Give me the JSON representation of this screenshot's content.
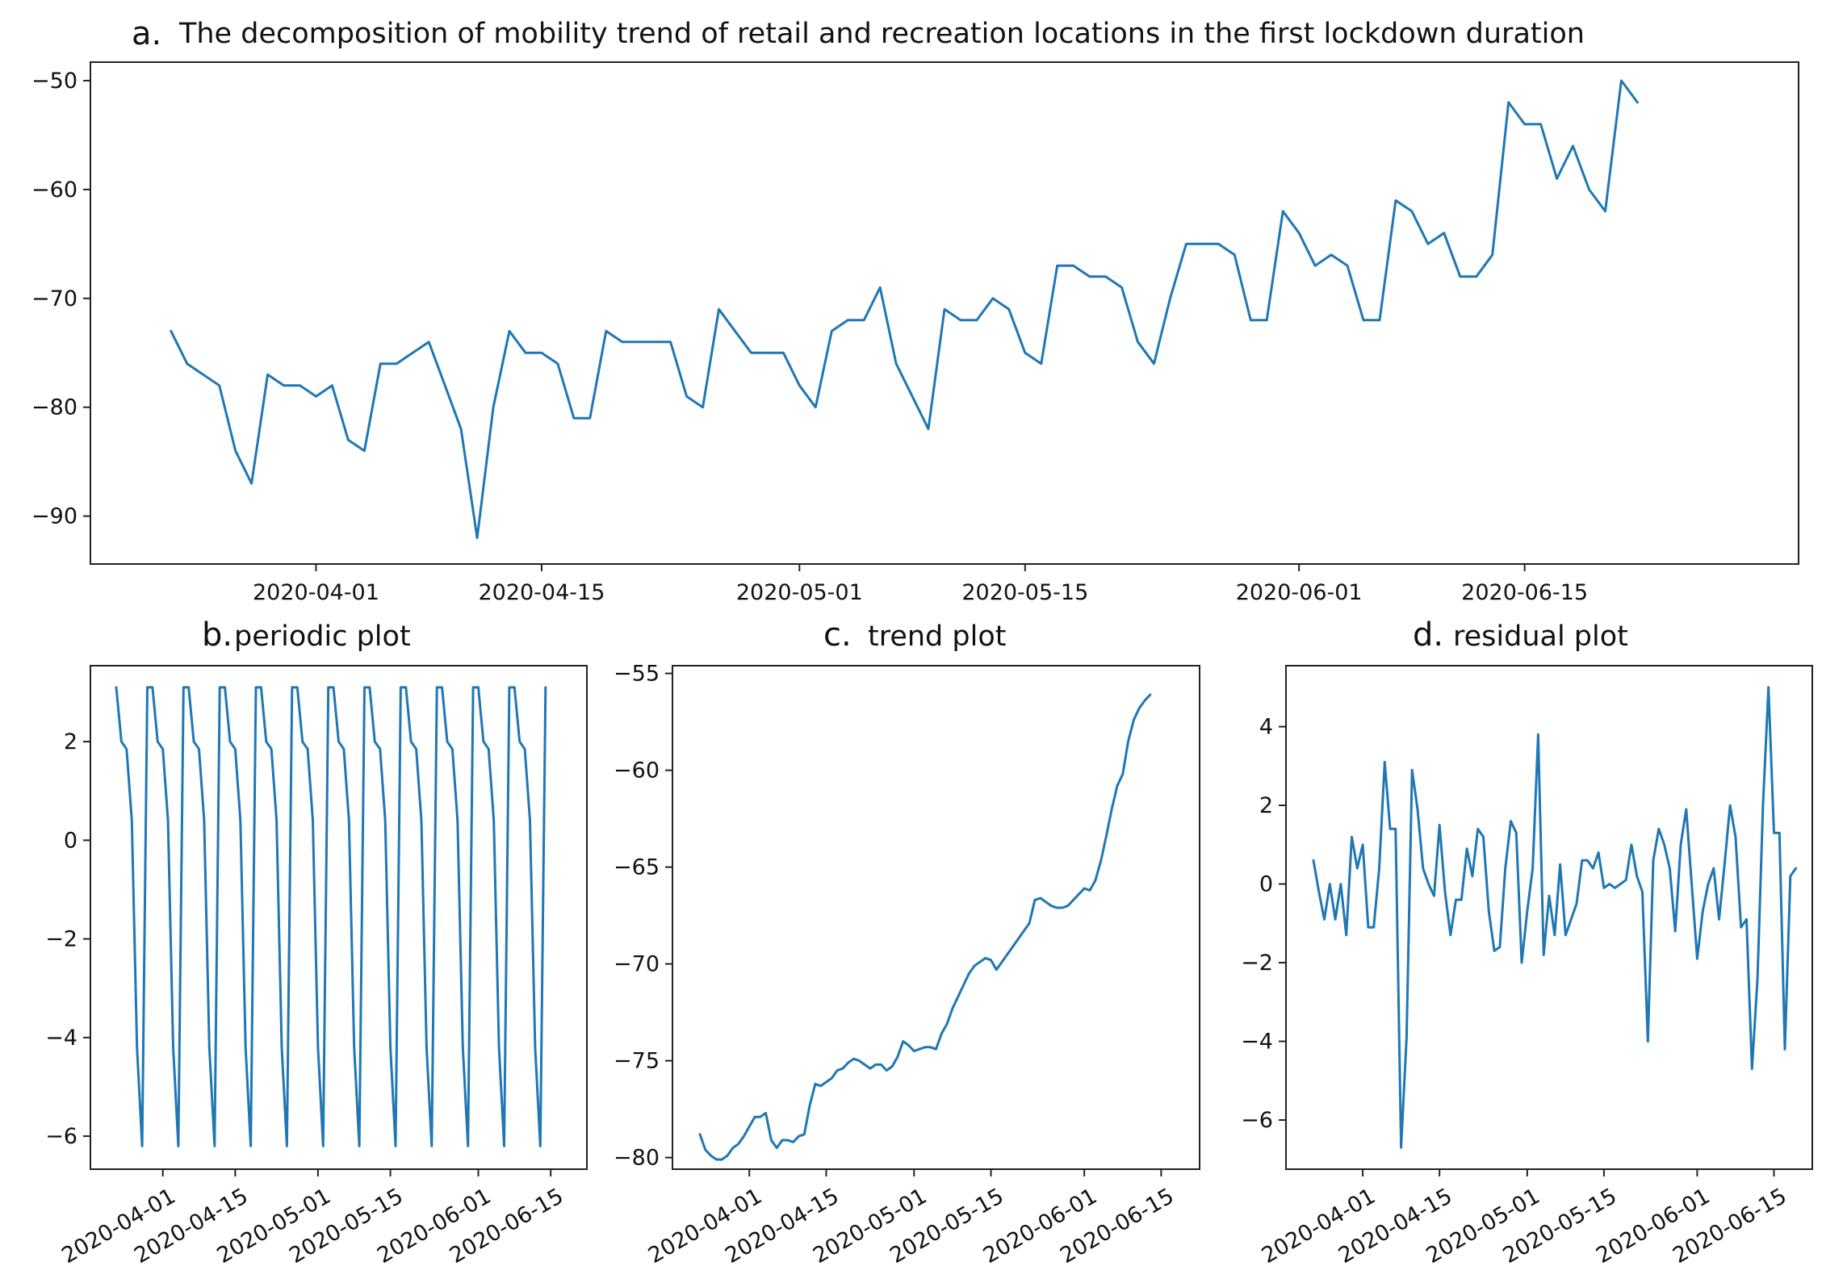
{
  "chart_data": [
    {
      "id": "a",
      "type": "line",
      "panel_letter": "a.",
      "title": "The decomposition of mobility trend of retail and recreation locations in the first lockdown duration",
      "xlabel": "",
      "ylabel": "",
      "start_date": "2020-03-23",
      "x_ticks": [
        "2020-04-01",
        "2020-04-15",
        "2020-05-01",
        "2020-05-15",
        "2020-06-01",
        "2020-06-15"
      ],
      "y_ticks": [
        -50,
        -60,
        -70,
        -80,
        -90
      ],
      "xlim": [
        "2020-03-18",
        "2020-07-02"
      ],
      "ylim": [
        -94.4,
        -48.3
      ],
      "color": "#1f77b4",
      "values": [
        -73,
        -76,
        -77,
        -78,
        -84,
        -87,
        -77,
        -78,
        -78,
        -79,
        -78,
        -83,
        -84,
        -76,
        -76,
        -75,
        -74,
        -78,
        -82,
        -92,
        -80,
        -73,
        -75,
        -75,
        -76,
        -81,
        -81,
        -73,
        -74,
        -74,
        -74,
        -74,
        -79,
        -80,
        -71,
        -73,
        -75,
        -75,
        -75,
        -78,
        -80,
        -73,
        -72,
        -72,
        -69,
        -76,
        -79,
        -82,
        -71,
        -72,
        -72,
        -70,
        -71,
        -75,
        -76,
        -67,
        -67,
        -68,
        -68,
        -69,
        -74,
        -76,
        -70,
        -65,
        -65,
        -65,
        -66,
        -72,
        -72,
        -62,
        -64,
        -67,
        -66,
        -67,
        -72,
        -72,
        -61,
        -62,
        -65,
        -64,
        -68,
        -68,
        -66,
        -52,
        -54,
        -54,
        -59,
        -56,
        -60,
        -62,
        -50,
        -52
      ]
    },
    {
      "id": "b",
      "type": "line",
      "panel_letter": "b.",
      "title": "periodic plot",
      "xlabel": "",
      "ylabel": "",
      "start_date": "2020-03-23",
      "x_ticks": [
        "2020-04-01",
        "2020-04-15",
        "2020-05-01",
        "2020-05-15",
        "2020-06-01",
        "2020-06-15"
      ],
      "y_ticks": [
        2,
        0,
        -2,
        -4,
        -6
      ],
      "xlim": [
        "2020-03-18",
        "2020-06-22"
      ],
      "ylim": [
        -6.67,
        3.54
      ],
      "color": "#1f77b4",
      "period_pattern": [
        3.1,
        2.0,
        1.85,
        0.4,
        -4.2,
        -6.2,
        3.1
      ],
      "periods": 12
    },
    {
      "id": "c",
      "type": "line",
      "panel_letter": "c.",
      "title": "trend plot",
      "xlabel": "",
      "ylabel": "",
      "start_date": "2020-03-23",
      "x_ticks": [
        "2020-04-01",
        "2020-04-15",
        "2020-05-01",
        "2020-05-15",
        "2020-06-01",
        "2020-06-15"
      ],
      "y_ticks": [
        -55,
        -60,
        -65,
        -70,
        -75,
        -80
      ],
      "xlim": [
        "2020-03-18",
        "2020-06-22"
      ],
      "ylim": [
        -80.6,
        -54.6
      ],
      "color": "#1f77b4",
      "values": [
        -78.8,
        -79.6,
        -79.9,
        -80.1,
        -80.1,
        -79.9,
        -79.5,
        -79.3,
        -78.9,
        -78.4,
        -77.9,
        -77.9,
        -77.7,
        -79.1,
        -79.5,
        -79.1,
        -79.1,
        -79.2,
        -78.9,
        -78.8,
        -77.3,
        -76.2,
        -76.3,
        -76.1,
        -75.9,
        -75.5,
        -75.4,
        -75.1,
        -74.9,
        -75.0,
        -75.2,
        -75.4,
        -75.2,
        -75.2,
        -75.5,
        -75.3,
        -74.8,
        -74.0,
        -74.2,
        -74.5,
        -74.4,
        -74.3,
        -74.3,
        -74.4,
        -73.6,
        -73.1,
        -72.3,
        -71.7,
        -71.1,
        -70.5,
        -70.1,
        -69.9,
        -69.7,
        -69.8,
        -70.3,
        -69.9,
        -69.5,
        -69.1,
        -68.7,
        -68.3,
        -67.9,
        -66.7,
        -66.6,
        -66.8,
        -67.0,
        -67.1,
        -67.1,
        -67.0,
        -66.7,
        -66.4,
        -66.1,
        -66.2,
        -65.7,
        -64.7,
        -63.4,
        -62.0,
        -60.8,
        -60.2,
        -58.5,
        -57.4,
        -56.8,
        -56.4,
        -56.1
      ]
    },
    {
      "id": "d",
      "type": "line",
      "panel_letter": "d.",
      "title": "residual plot",
      "xlabel": "",
      "ylabel": "",
      "start_date": "2020-03-23",
      "x_ticks": [
        "2020-04-01",
        "2020-04-15",
        "2020-05-01",
        "2020-05-15",
        "2020-06-01",
        "2020-06-15"
      ],
      "y_ticks": [
        4,
        2,
        0,
        -2,
        -4,
        -6
      ],
      "xlim": [
        "2020-03-18",
        "2020-06-22"
      ],
      "ylim": [
        -7.25,
        5.55
      ],
      "color": "#1f77b4",
      "values": [
        0.6,
        -0.2,
        -0.9,
        0.0,
        -0.9,
        0.0,
        -1.3,
        1.2,
        0.4,
        1.0,
        -1.1,
        -1.1,
        0.4,
        3.1,
        1.4,
        1.4,
        -6.7,
        -3.9,
        2.9,
        1.9,
        0.4,
        0.0,
        -0.3,
        1.5,
        -0.2,
        -1.3,
        -0.4,
        -0.4,
        0.9,
        0.2,
        1.4,
        1.2,
        -0.7,
        -1.7,
        -1.6,
        0.4,
        1.6,
        1.3,
        -2.0,
        -0.7,
        0.4,
        3.8,
        -1.8,
        -0.3,
        -1.3,
        0.5,
        -1.3,
        -0.9,
        -0.5,
        0.6,
        0.6,
        0.4,
        0.8,
        -0.1,
        0.0,
        -0.1,
        0.0,
        0.1,
        1.0,
        0.2,
        -0.2,
        -4.0,
        0.6,
        1.4,
        1.0,
        0.4,
        -1.2,
        1.0,
        1.9,
        0.0,
        -1.9,
        -0.7,
        0.0,
        0.4,
        -0.9,
        0.5,
        2.0,
        1.2,
        -1.1,
        -0.9,
        -4.7,
        -2.4,
        2.0,
        5.0,
        1.3,
        1.3,
        -4.2,
        0.2,
        0.4
      ]
    }
  ]
}
